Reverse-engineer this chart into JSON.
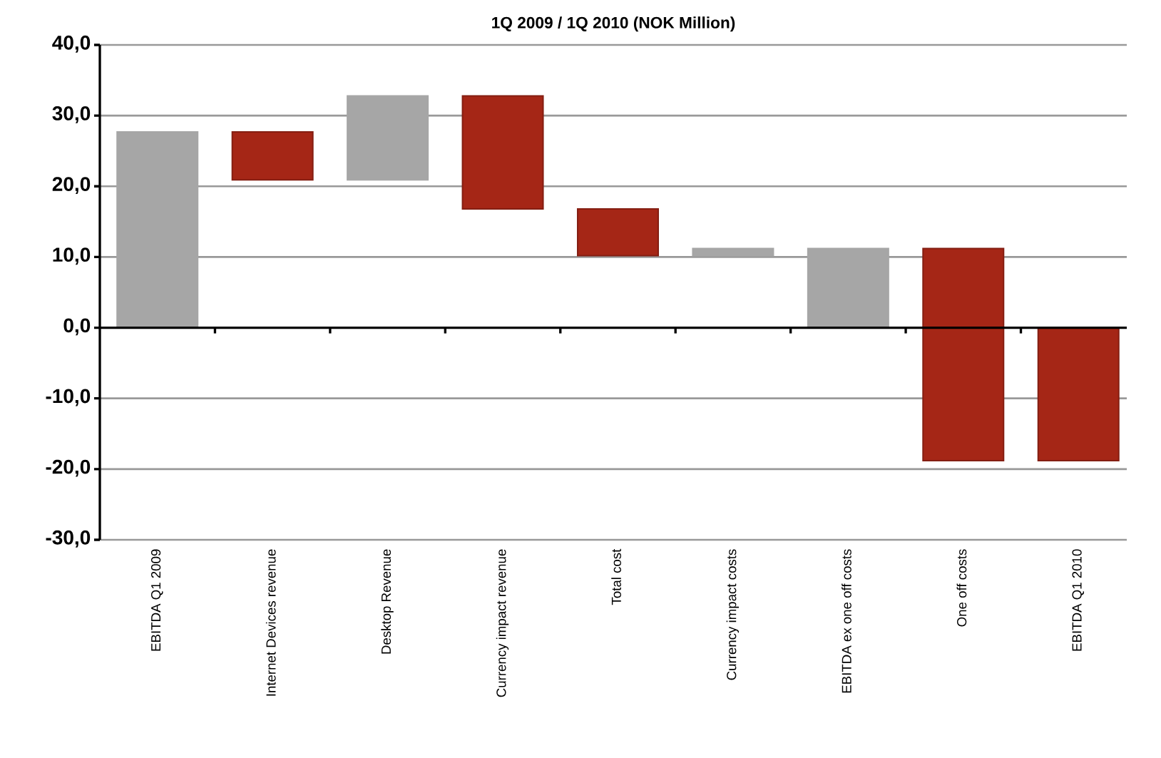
{
  "chart_data": {
    "type": "bar",
    "title": "1Q 2009 / 1Q 2010 (NOK Million)",
    "categories": [
      "EBITDA Q1 2009",
      "Internet Devices revenue",
      "Desktop Revenue",
      "Currency impact revenue",
      "Total cost",
      "Currency impact costs",
      "EBITDA ex one off costs",
      "One off costs",
      "EBITDA Q1 2010"
    ],
    "base": [
      0,
      27.7,
      20.9,
      32.8,
      16.8,
      10.2,
      0,
      11.2,
      0
    ],
    "values": [
      27.7,
      -6.8,
      11.9,
      -16.0,
      -6.6,
      1.0,
      11.2,
      -30.0,
      -18.8
    ],
    "colors": [
      "#a6a6a6",
      "#a52616",
      "#a6a6a6",
      "#a52616",
      "#a52616",
      "#a6a6a6",
      "#a6a6a6",
      "#a52616",
      "#a52616"
    ],
    "ylim": [
      -30,
      40
    ],
    "yticks": [
      {
        "value": -30,
        "label": "-30,0"
      },
      {
        "value": -20,
        "label": "-20,0"
      },
      {
        "value": -10,
        "label": "-10,0"
      },
      {
        "value": 0,
        "label": "0,0"
      },
      {
        "value": 10,
        "label": "10,0"
      },
      {
        "value": 20,
        "label": "20,0"
      },
      {
        "value": 30,
        "label": "30,0"
      },
      {
        "value": 40,
        "label": "40,0"
      }
    ],
    "grid": "y"
  }
}
